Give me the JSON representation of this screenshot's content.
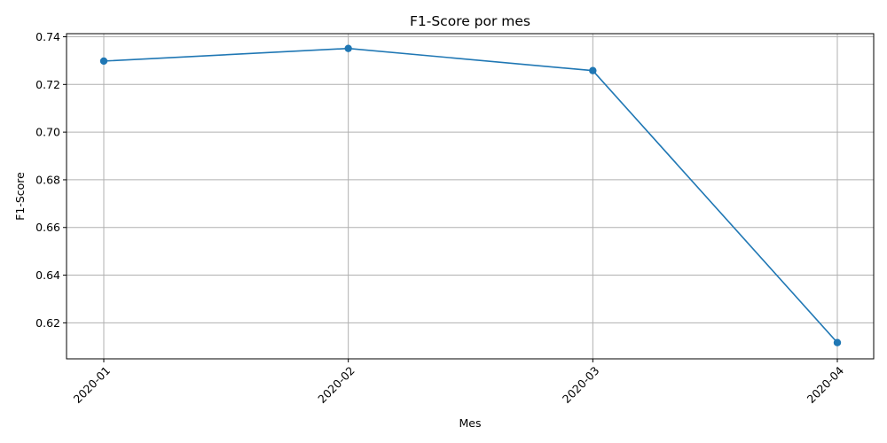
{
  "chart_data": {
    "type": "line",
    "title": "F1-Score por mes",
    "xlabel": "Mes",
    "ylabel": "F1-Score",
    "categories": [
      "2020-01",
      "2020-02",
      "2020-03",
      "2020-04"
    ],
    "series": [
      {
        "values": [
          0.7298,
          0.7351,
          0.7258,
          0.6117
        ],
        "color": "#1f77b4",
        "marker": "circle"
      }
    ],
    "yticks": [
      0.62,
      0.64,
      0.66,
      0.68,
      0.7,
      0.72,
      0.74
    ],
    "ytick_labels": [
      "0.62",
      "0.64",
      "0.66",
      "0.68",
      "0.70",
      "0.72",
      "0.74"
    ],
    "ylim": [
      0.6049,
      0.7413
    ],
    "grid": true,
    "xtick_rotation": 45
  }
}
